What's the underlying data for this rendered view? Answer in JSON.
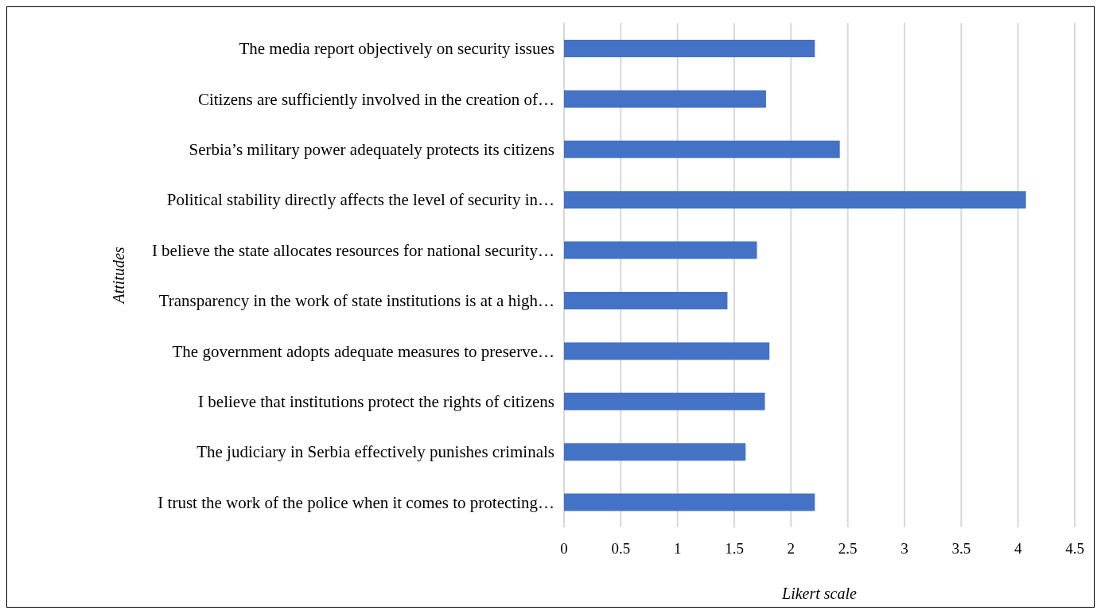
{
  "chart_data": {
    "type": "bar",
    "orientation": "horizontal",
    "xlabel": "Likert scale",
    "ylabel": "Attitudes",
    "categories": [
      "The media report objectively on security issues",
      "Citizens are sufficiently involved in the creation of…",
      "Serbia’s military power adequately protects its citizens",
      "Political stability directly affects the level of security in…",
      "I believe the state allocates resources for national security…",
      "Transparency in the work of state institutions is at a high…",
      "The government adopts adequate measures to preserve…",
      "I believe that institutions protect the rights of citizens",
      "The judiciary in Serbia effectively punishes criminals",
      "I trust the work of the police when it comes to protecting…"
    ],
    "values": [
      2.21,
      1.78,
      2.43,
      4.07,
      1.7,
      1.44,
      1.81,
      1.77,
      1.6,
      2.21
    ],
    "color": "#4472c4",
    "xlim": [
      0,
      4.5
    ],
    "xticks": [
      0,
      0.5,
      1,
      1.5,
      2,
      2.5,
      3,
      3.5,
      4,
      4.5
    ],
    "grid": "x",
    "legend": false
  }
}
